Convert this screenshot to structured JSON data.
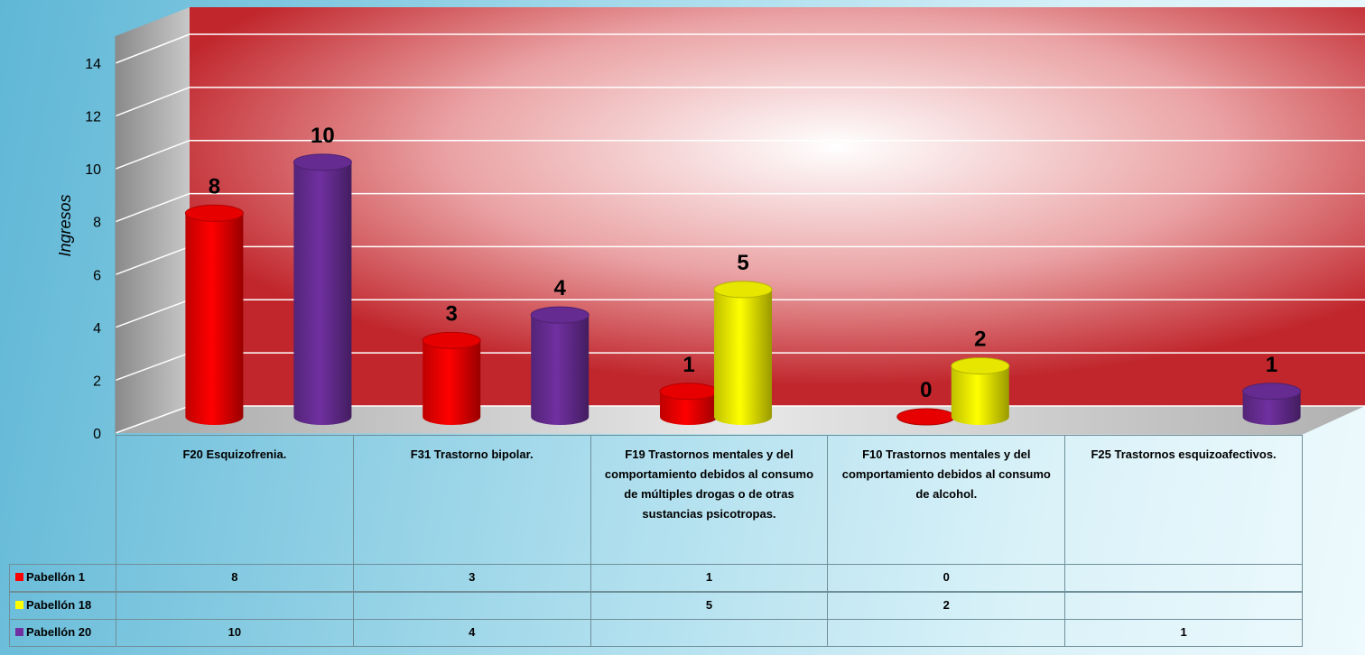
{
  "chart_data": {
    "type": "bar3d",
    "y_label": "Ingresos",
    "categories": [
      "F20 Esquizofrenia.",
      "F31 Trastorno bipolar.",
      "F19 Trastornos mentales y del comportamiento debidos al consumo de múltiples drogas o de otras sustancias psicotropas.",
      "F10 Trastornos mentales y del comportamiento debidos al consumo de alcohol.",
      "F25 Trastornos esquizoafectivos."
    ],
    "series": [
      {
        "name": "Pabellón 1",
        "color": "#ff0000",
        "values": [
          8,
          3,
          1,
          0,
          null
        ]
      },
      {
        "name": "Pabellón 18",
        "color": "#ffff00",
        "values": [
          null,
          null,
          5,
          2,
          null
        ]
      },
      {
        "name": "Pabellón 20",
        "color": "#7030a0",
        "values": [
          10,
          4,
          null,
          null,
          1
        ]
      }
    ],
    "ylim": [
      0,
      14
    ],
    "yticks": [
      0,
      2,
      4,
      6,
      8,
      10,
      12,
      14
    ],
    "grid": true,
    "data_table": true
  }
}
